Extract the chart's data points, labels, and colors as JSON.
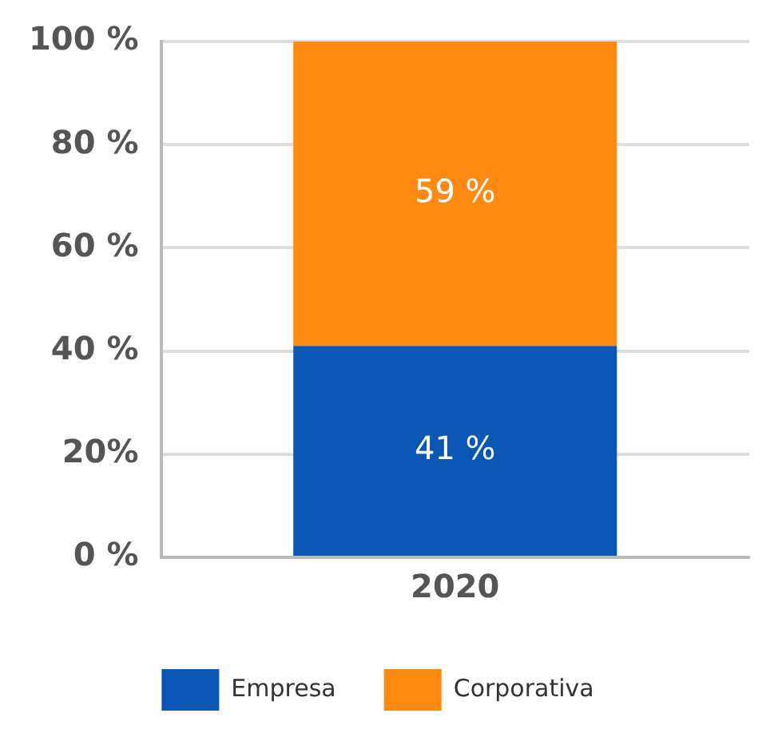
{
  "chart_data": {
    "type": "bar",
    "stacked": true,
    "categories": [
      "2020"
    ],
    "series": [
      {
        "name": "Empresa",
        "color": "#0a56b4",
        "values": [
          41
        ],
        "value_labels": [
          "41 %"
        ]
      },
      {
        "name": "Corporativa",
        "color": "#ff8a12",
        "values": [
          59
        ],
        "value_labels": [
          "59 %"
        ]
      }
    ],
    "ylim": [
      0,
      100
    ],
    "yticks": [
      {
        "value": 0,
        "label": "0 %"
      },
      {
        "value": 20,
        "label": "20%"
      },
      {
        "value": 40,
        "label": "40 %"
      },
      {
        "value": 60,
        "label": "60 %"
      },
      {
        "value": 80,
        "label": "80 %"
      },
      {
        "value": 100,
        "label": "100 %"
      }
    ],
    "grid": "y",
    "legend": "bottom"
  }
}
